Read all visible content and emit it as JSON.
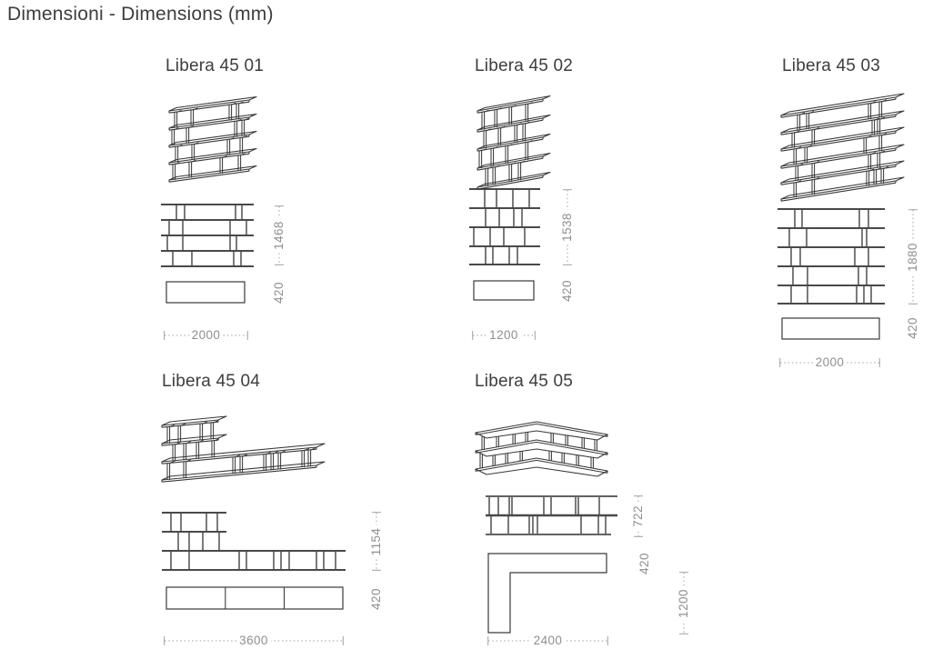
{
  "page_title": "Dimensioni - Dimensions (mm)",
  "units": [
    {
      "name": "Libera 45 01",
      "height_mm": "1468",
      "depth_mm": "420",
      "width_mm": "2000"
    },
    {
      "name": "Libera 45 02",
      "height_mm": "1538",
      "depth_mm": "420",
      "width_mm": "1200"
    },
    {
      "name": "Libera 45 03",
      "height_mm": "1880",
      "depth_mm": "420",
      "width_mm": "2000"
    },
    {
      "name": "Libera 45 04",
      "height_mm": "1154",
      "depth_mm": "420",
      "width_mm": "3600"
    },
    {
      "name": "Libera 45 05",
      "height_mm": "722",
      "depth_mm": "420",
      "return_depth_mm": "1200",
      "width_mm": "2400"
    }
  ],
  "colors": {
    "drawing_line": "#3a3a3a",
    "shelf_line": "#2f2f2f",
    "dimension": "#a0a0a0",
    "dimension_text": "#8f8f8f",
    "title_text": "#3d3d3d",
    "background": "#ffffff"
  }
}
